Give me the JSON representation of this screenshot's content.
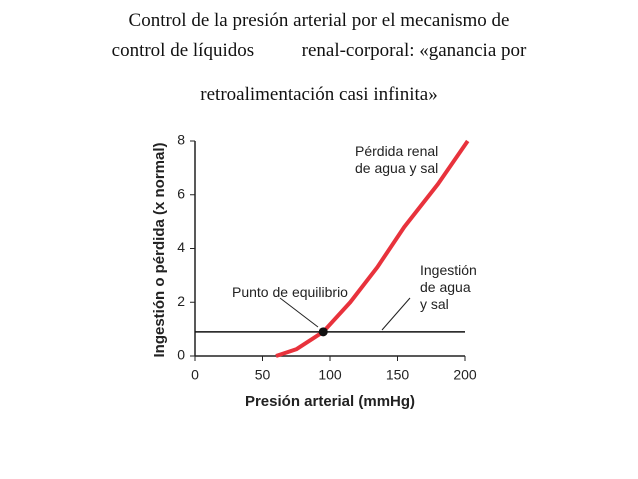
{
  "chart_data": {
    "type": "line",
    "title": [
      "Control de la presión arterial por el mecanismo de",
      "control de líquidos          renal-corporal: «ganancia por",
      "retroalimentación casi infinita»"
    ],
    "xlabel": "Presión arterial (mmHg)",
    "ylabel": "Ingestión o pérdida (x normal)",
    "xlim": [
      0,
      200
    ],
    "ylim": [
      0,
      8
    ],
    "xticks": [
      0,
      50,
      100,
      150,
      200
    ],
    "yticks": [
      0,
      2,
      4,
      6,
      8
    ],
    "series": [
      {
        "name": "Pérdida renal\nde agua y sal",
        "color": "#e8323c",
        "x": [
          60,
          75,
          95,
          115,
          135,
          155,
          180,
          202
        ],
        "values": [
          0,
          0.25,
          0.9,
          2,
          3.3,
          4.8,
          6.4,
          8
        ]
      },
      {
        "name": "Ingestión\nde agua\ny sal",
        "color": "#111111",
        "x": [
          0,
          200
        ],
        "values": [
          0.9,
          0.9
        ]
      }
    ],
    "annotations": [
      {
        "text": "Punto de equilibrio",
        "x": 95,
        "y": 0.9
      }
    ]
  }
}
